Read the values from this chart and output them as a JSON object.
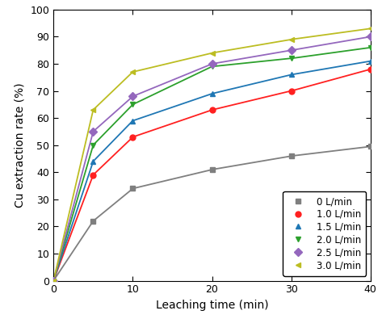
{
  "series": [
    {
      "label": "0 L/min",
      "color": "#7f7f7f",
      "marker": "s",
      "markersize": 5,
      "x": [
        0,
        5,
        10,
        20,
        30,
        40
      ],
      "y": [
        0,
        22,
        34,
        41,
        46,
        49.5
      ]
    },
    {
      "label": "1.0 L/min",
      "color": "#ff2020",
      "marker": "o",
      "markersize": 5,
      "x": [
        0,
        5,
        10,
        20,
        30,
        40
      ],
      "y": [
        0,
        39,
        53,
        63,
        70,
        78
      ]
    },
    {
      "label": "1.5 L/min",
      "color": "#1f77b4",
      "marker": "^",
      "markersize": 5,
      "x": [
        0,
        5,
        10,
        20,
        30,
        40
      ],
      "y": [
        0,
        44,
        59,
        69,
        76,
        81
      ]
    },
    {
      "label": "2.0 L/min",
      "color": "#2ca02c",
      "marker": "v",
      "markersize": 5,
      "x": [
        0,
        5,
        10,
        20,
        30,
        40
      ],
      "y": [
        0,
        50,
        65,
        79,
        82,
        86
      ]
    },
    {
      "label": "2.5 L/min",
      "color": "#9467bd",
      "marker": "D",
      "markersize": 5,
      "x": [
        0,
        5,
        10,
        20,
        30,
        40
      ],
      "y": [
        0,
        55,
        68,
        80,
        85,
        90
      ]
    },
    {
      "label": "3.0 L/min",
      "color": "#bcbd22",
      "marker": "<",
      "markersize": 5,
      "x": [
        0,
        5,
        10,
        20,
        30,
        40
      ],
      "y": [
        0,
        63,
        77,
        84,
        89,
        93
      ]
    }
  ],
  "xlabel": "Leaching time (min)",
  "ylabel": "Cu extraction rate (%)",
  "xlim": [
    0,
    40
  ],
  "ylim": [
    0,
    100
  ],
  "xticks": [
    0,
    10,
    20,
    30,
    40
  ],
  "yticks": [
    0,
    10,
    20,
    30,
    40,
    50,
    60,
    70,
    80,
    90,
    100
  ],
  "legend_loc": "lower right",
  "figsize": [
    4.73,
    3.95
  ],
  "dpi": 100
}
